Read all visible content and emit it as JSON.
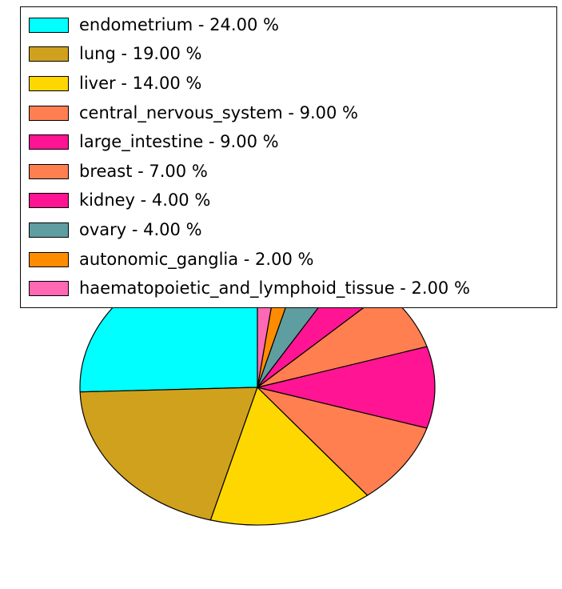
{
  "chart_data": {
    "type": "pie",
    "title": "",
    "start_angle_deg": 90,
    "direction": "counterclockwise",
    "legend_position": "top, overlapping upper part of pie",
    "value_unit": "%",
    "edge_color": "#000000",
    "background": "#FFFFFF",
    "items": [
      {
        "label": "endometrium",
        "value": 24.0,
        "display": "endometrium - 24.00 %",
        "color": "#00FFFF"
      },
      {
        "label": "lung",
        "value": 19.0,
        "display": "lung - 19.00 %",
        "color": "#D0A11D"
      },
      {
        "label": "liver",
        "value": 14.0,
        "display": "liver - 14.00 %",
        "color": "#FFD700"
      },
      {
        "label": "central_nervous_system",
        "value": 9.0,
        "display": "central_nervous_system - 9.00 %",
        "color": "#FF7F50"
      },
      {
        "label": "large_intestine",
        "value": 9.0,
        "display": "large_intestine - 9.00 %",
        "color": "#FF1493"
      },
      {
        "label": "breast",
        "value": 7.0,
        "display": "breast - 7.00 %",
        "color": "#FF7F50"
      },
      {
        "label": "kidney",
        "value": 4.0,
        "display": "kidney - 4.00 %",
        "color": "#FF1493"
      },
      {
        "label": "ovary",
        "value": 4.0,
        "display": "ovary - 4.00 %",
        "color": "#5F9EA0"
      },
      {
        "label": "autonomic_ganglia",
        "value": 2.0,
        "display": "autonomic_ganglia - 2.00 %",
        "color": "#FF8C00"
      },
      {
        "label": "haematopoietic_and_lymphoid_tissue",
        "value": 2.0,
        "display": "haematopoietic_and_lymphoid_tissue - 2.00 %",
        "color": "#FF69B4"
      }
    ]
  }
}
